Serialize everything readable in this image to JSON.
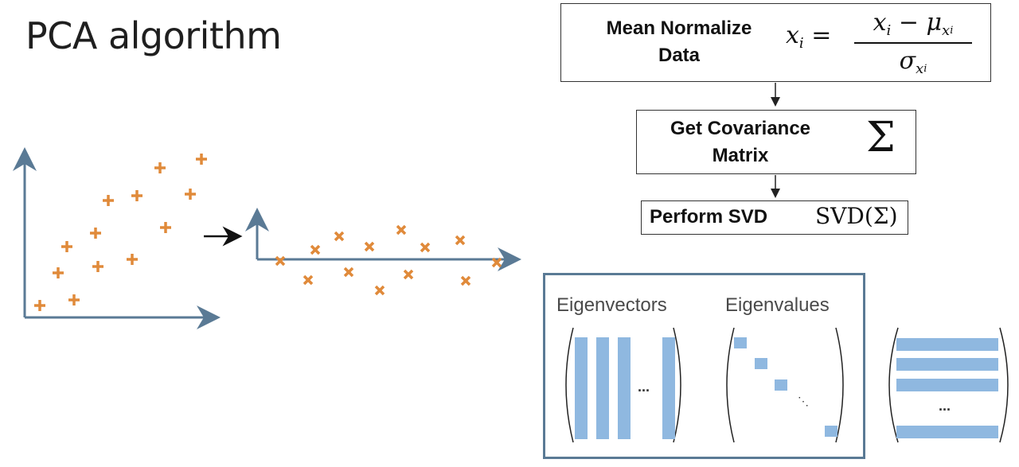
{
  "slide": {
    "title": "PCA algorithm"
  },
  "steps": [
    {
      "label": "Mean Normalize\nData",
      "formula_lhs": "x",
      "formula_lhs_sub": "i",
      "formula_equals": "=",
      "formula_num": "x",
      "formula_num_sub": "i",
      "formula_minus": " − μ",
      "formula_num_mu_sub": "x",
      "formula_num_mu_subsub": "i",
      "formula_den": "σ",
      "formula_den_sub": "x",
      "formula_den_subsub": "i"
    },
    {
      "label": "Get Covariance\nMatrix",
      "formula": "Σ"
    },
    {
      "label": "Perform SVD",
      "formula": "SVD(Σ)"
    }
  ],
  "results": {
    "eigenvectors_label": "Eigenvectors",
    "eigenvalues_label": "Eigenvalues",
    "ellipsis": "...",
    "diagonal_ellipsis": "⋱"
  },
  "colors": {
    "axis": "#5a7a95",
    "point": "#e08a3a",
    "matrix_fill": "#8fb8e0",
    "panel_border": "#5a7a95",
    "text": "#1a1a1a"
  },
  "icons": {
    "original_point": "plus-marker",
    "projected_point": "x-marker",
    "transform_arrow": "right-arrow"
  }
}
